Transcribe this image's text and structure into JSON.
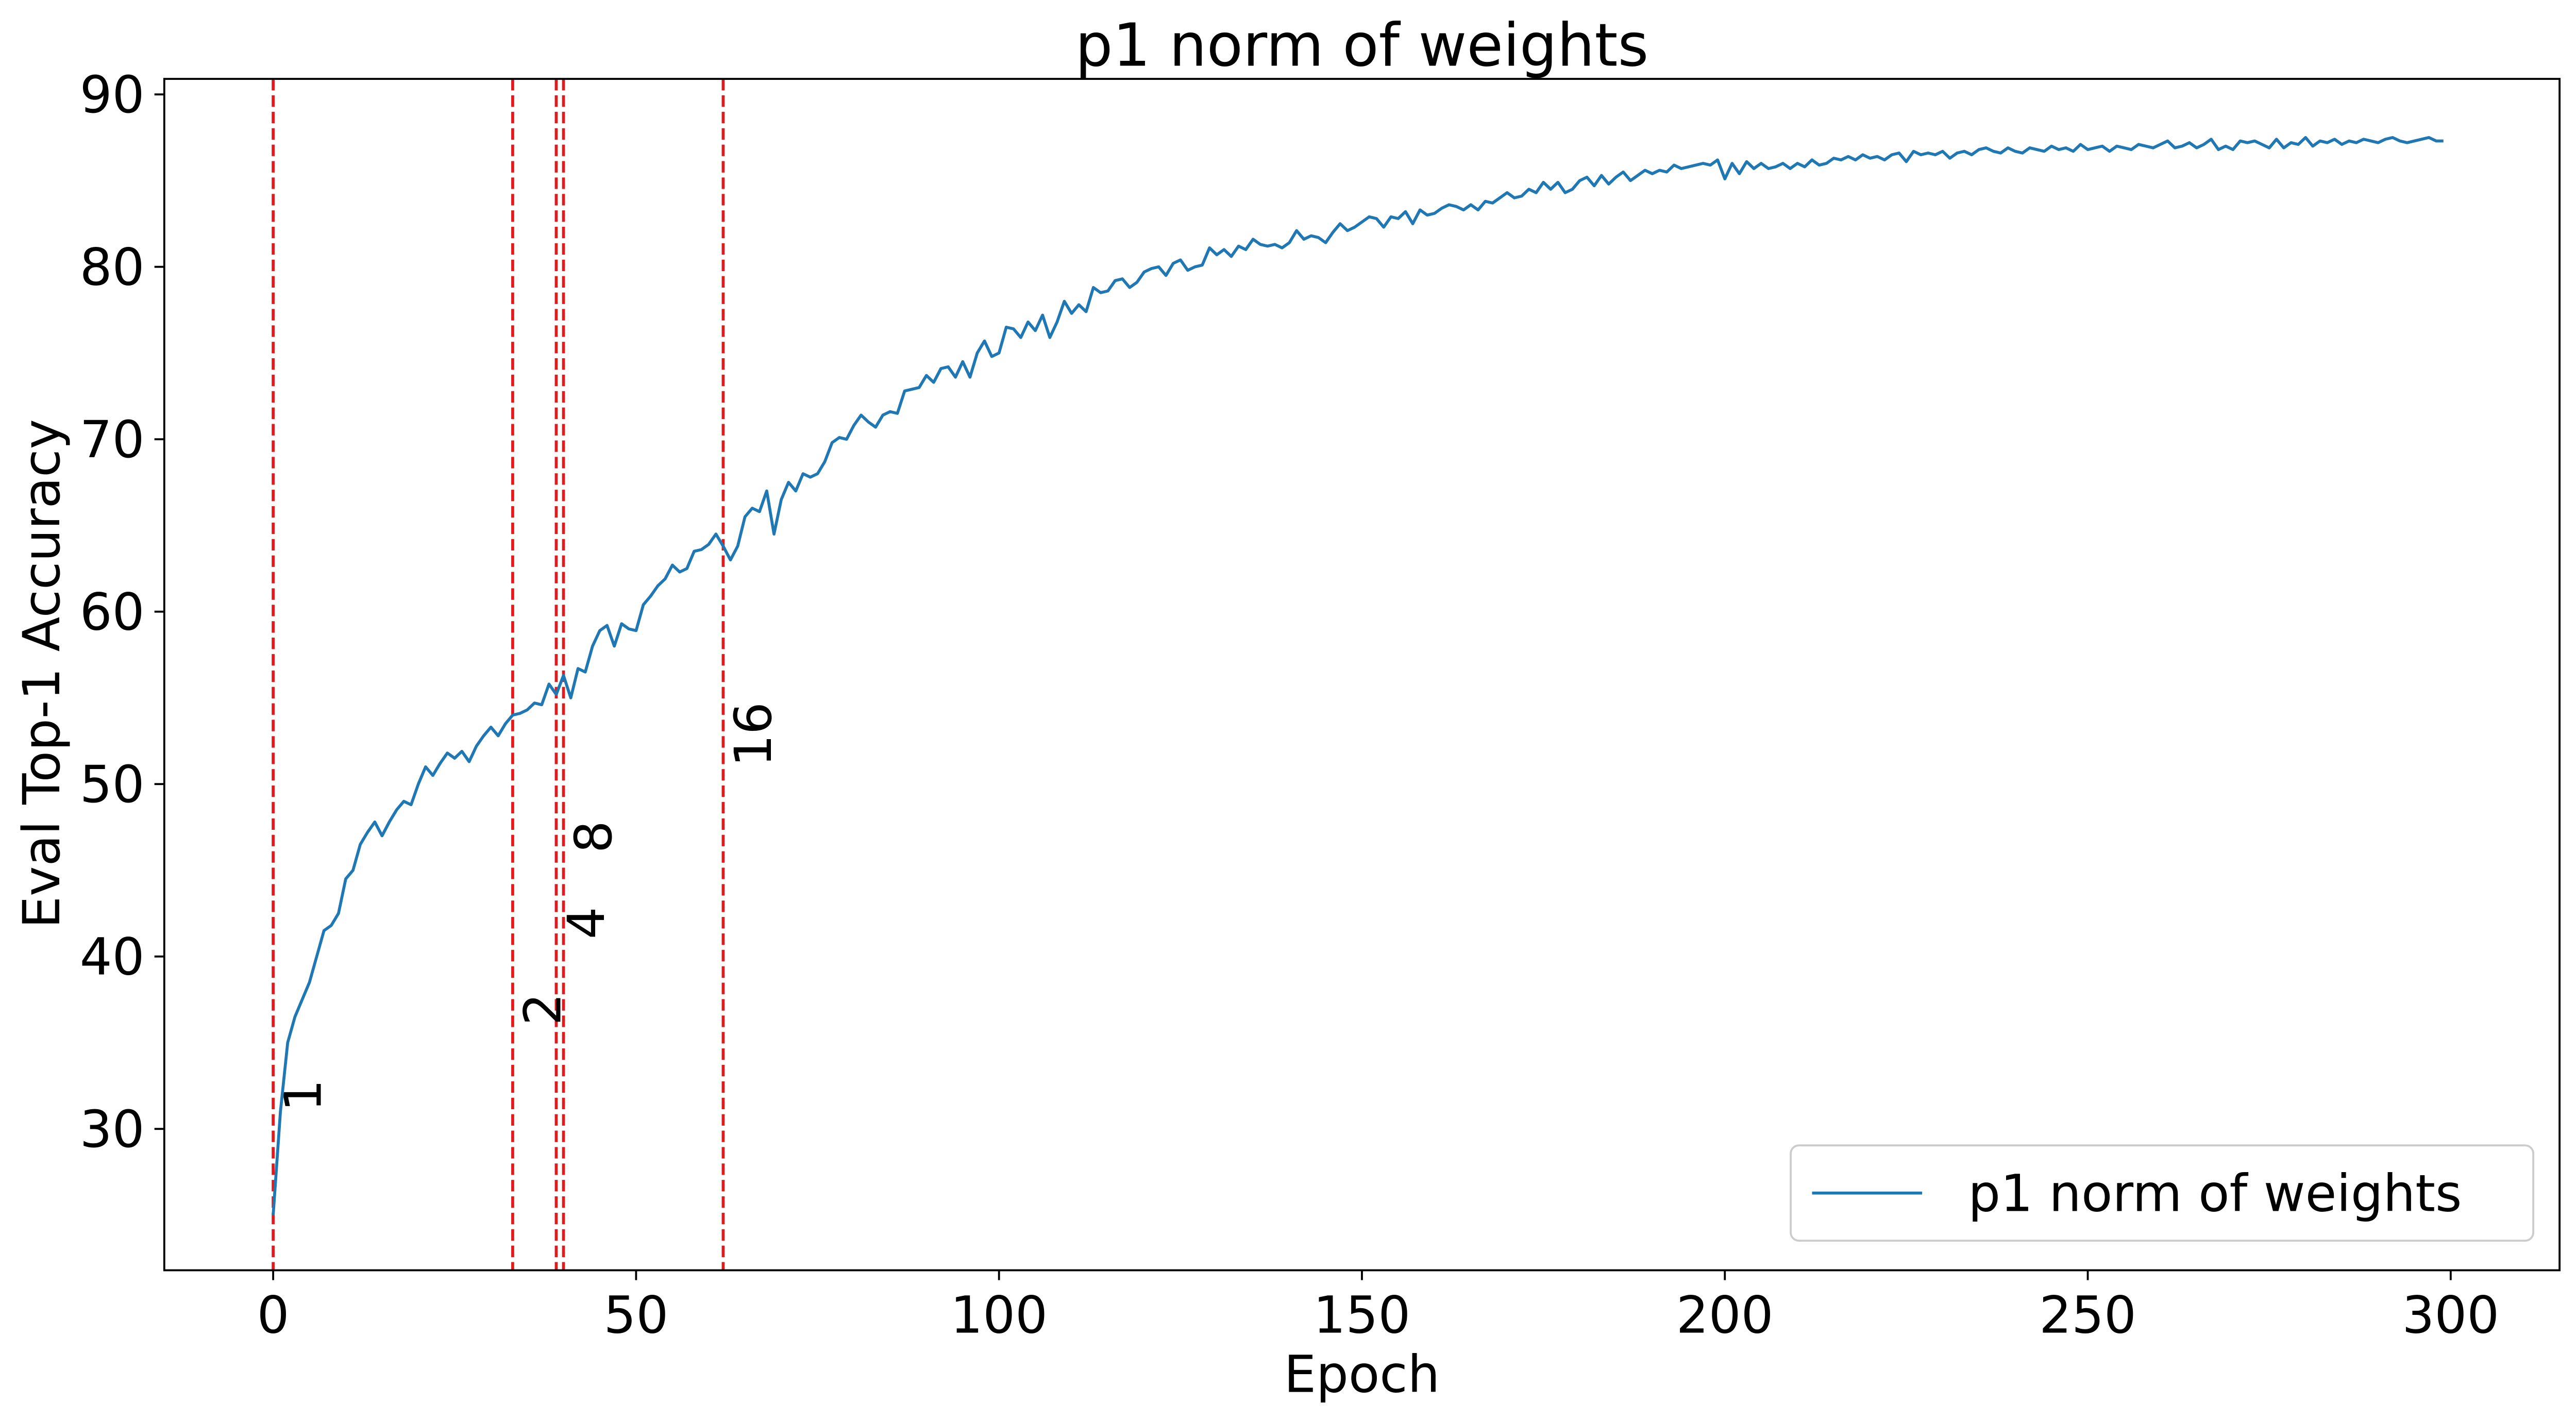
{
  "chart_data": {
    "type": "line",
    "title": "p1 norm of weights",
    "x_label": "Epoch",
    "y_label": "Eval Top-1 Accuracy",
    "x": [
      0,
      1,
      2,
      3,
      4,
      5,
      6,
      7,
      8,
      9,
      10,
      11,
      12,
      13,
      14,
      15,
      16,
      17,
      18,
      19,
      20,
      21,
      22,
      23,
      24,
      25,
      26,
      27,
      28,
      29,
      30,
      31,
      32,
      33,
      34,
      35,
      36,
      37,
      38,
      39,
      40,
      41,
      42,
      43,
      44,
      45,
      46,
      47,
      48,
      49,
      50,
      51,
      52,
      53,
      54,
      55,
      56,
      57,
      58,
      59,
      60,
      61,
      62,
      63,
      64,
      65,
      66,
      67,
      68,
      69,
      70,
      71,
      72,
      73,
      74,
      75,
      76,
      77,
      78,
      79,
      80,
      81,
      82,
      83,
      84,
      85,
      86,
      87,
      88,
      89,
      90,
      91,
      92,
      93,
      94,
      95,
      96,
      97,
      98,
      99,
      100,
      101,
      102,
      103,
      104,
      105,
      106,
      107,
      108,
      109,
      110,
      111,
      112,
      113,
      114,
      115,
      116,
      117,
      118,
      119,
      120,
      121,
      122,
      123,
      124,
      125,
      126,
      127,
      128,
      129,
      130,
      131,
      132,
      133,
      134,
      135,
      136,
      137,
      138,
      139,
      140,
      141,
      142,
      143,
      144,
      145,
      146,
      147,
      148,
      149,
      150,
      151,
      152,
      153,
      154,
      155,
      156,
      157,
      158,
      159,
      160,
      161,
      162,
      163,
      164,
      165,
      166,
      167,
      168,
      169,
      170,
      171,
      172,
      173,
      174,
      175,
      176,
      177,
      178,
      179,
      180,
      181,
      182,
      183,
      184,
      185,
      186,
      187,
      188,
      189,
      190,
      191,
      192,
      193,
      194,
      195,
      196,
      197,
      198,
      199,
      200,
      201,
      202,
      203,
      204,
      205,
      206,
      207,
      208,
      209,
      210,
      211,
      212,
      213,
      214,
      215,
      216,
      217,
      218,
      219,
      220,
      221,
      222,
      223,
      224,
      225,
      226,
      227,
      228,
      229,
      230,
      231,
      232,
      233,
      234,
      235,
      236,
      237,
      238,
      239,
      240,
      241,
      242,
      243,
      244,
      245,
      246,
      247,
      248,
      249,
      250,
      251,
      252,
      253,
      254,
      255,
      256,
      257,
      258,
      259,
      260,
      261,
      262,
      263,
      264,
      265,
      266,
      267,
      268,
      269,
      270,
      271,
      272,
      273,
      274,
      275,
      276,
      277,
      278,
      279,
      280,
      281,
      282,
      283,
      284,
      285,
      286,
      287,
      288,
      289,
      290,
      291,
      292,
      293,
      294,
      295,
      296,
      297,
      298,
      299
    ],
    "series": [
      {
        "name": "p1 norm of weights",
        "color": "#1f77b4",
        "values": [
          25,
          31,
          35,
          36.5,
          37.5,
          38.5,
          40,
          41.5,
          41.8,
          42.5,
          44.5,
          45,
          46.5,
          47.2,
          47.8,
          47,
          47.8,
          48.5,
          49,
          48.8,
          50,
          51,
          50.5,
          51.2,
          51.8,
          51.5,
          51.9,
          51.3,
          52.2,
          52.8,
          53.3,
          52.8,
          53.5,
          54,
          54.1,
          54.3,
          54.7,
          54.6,
          55.8,
          55.2,
          56.3,
          55,
          56.7,
          56.5,
          58,
          58.9,
          59.2,
          58,
          59.3,
          59,
          58.9,
          60.4,
          60.9,
          61.5,
          61.9,
          62.7,
          62.3,
          62.5,
          63.5,
          63.6,
          63.9,
          64.5,
          63.8,
          63,
          63.8,
          65.5,
          66,
          65.8,
          67,
          64.5,
          66.5,
          67.5,
          67,
          68,
          67.8,
          68,
          68.7,
          69.8,
          70.1,
          70,
          70.8,
          71.4,
          71,
          70.7,
          71.4,
          71.6,
          71.5,
          72.8,
          72.9,
          73,
          73.7,
          73.3,
          74.1,
          74.2,
          73.6,
          74.5,
          73.6,
          75,
          75.7,
          74.8,
          75,
          76.5,
          76.4,
          75.9,
          76.8,
          76.3,
          77.2,
          75.9,
          76.8,
          78,
          77.3,
          77.8,
          77.4,
          78.8,
          78.5,
          78.6,
          79.2,
          79.3,
          78.8,
          79.1,
          79.7,
          79.9,
          80,
          79.5,
          80.2,
          80.4,
          79.8,
          80,
          80.1,
          81.1,
          80.7,
          81,
          80.6,
          81.2,
          81,
          81.6,
          81.3,
          81.2,
          81.3,
          81.1,
          81.4,
          82.1,
          81.6,
          81.8,
          81.7,
          81.4,
          82,
          82.5,
          82.1,
          82.3,
          82.6,
          82.9,
          82.8,
          82.3,
          82.9,
          82.8,
          83.2,
          82.5,
          83.3,
          83,
          83.1,
          83.4,
          83.6,
          83.5,
          83.3,
          83.6,
          83.3,
          83.8,
          83.7,
          84,
          84.3,
          84,
          84.1,
          84.5,
          84.3,
          84.9,
          84.5,
          84.9,
          84.3,
          84.5,
          85,
          85.2,
          84.7,
          85.3,
          84.8,
          85.2,
          85.5,
          85,
          85.3,
          85.6,
          85.4,
          85.6,
          85.5,
          85.9,
          85.7,
          85.8,
          85.9,
          86,
          85.9,
          86.2,
          85.1,
          86,
          85.4,
          86.1,
          85.7,
          86,
          85.7,
          85.8,
          86,
          85.7,
          86,
          85.8,
          86.2,
          85.9,
          86,
          86.3,
          86.2,
          86.4,
          86.2,
          86.5,
          86.3,
          86.4,
          86.2,
          86.5,
          86.6,
          86.1,
          86.7,
          86.5,
          86.6,
          86.5,
          86.7,
          86.3,
          86.6,
          86.7,
          86.5,
          86.8,
          86.9,
          86.7,
          86.6,
          86.9,
          86.7,
          86.6,
          86.9,
          86.8,
          86.7,
          87,
          86.8,
          86.9,
          86.7,
          87.1,
          86.8,
          86.9,
          87,
          86.7,
          87,
          86.9,
          86.8,
          87.1,
          87,
          86.9,
          87.1,
          87.3,
          86.9,
          87,
          87.2,
          86.9,
          87.1,
          87.4,
          86.8,
          87,
          86.8,
          87.3,
          87.2,
          87.3,
          87.1,
          86.9,
          87.4,
          86.9,
          87.2,
          87.1,
          87.5,
          87,
          87.3,
          87.2,
          87.4,
          87.1,
          87.3,
          87.2,
          87.4,
          87.3,
          87.2,
          87.4,
          87.5,
          87.3,
          87.2,
          87.3,
          87.4,
          87.5,
          87.3,
          87.3
        ]
      }
    ],
    "xlim": [
      -15,
      315
    ],
    "xticks": [
      0,
      50,
      100,
      150,
      200,
      250,
      300
    ],
    "ylim": [
      21.8,
      90.9
    ],
    "yticks": [
      30,
      40,
      50,
      60,
      70,
      80,
      90
    ],
    "vlines": {
      "color": "#e31a1c",
      "x": [
        0,
        33,
        39,
        40,
        62
      ]
    },
    "annotations": [
      {
        "text": "1",
        "x": 0,
        "y": 31
      },
      {
        "text": "2",
        "x": 33,
        "y": 36
      },
      {
        "text": "4",
        "x": 39,
        "y": 41
      },
      {
        "text": "8",
        "x": 40,
        "y": 46
      },
      {
        "text": "16",
        "x": 62,
        "y": 51
      }
    ],
    "legend": "lower right"
  }
}
